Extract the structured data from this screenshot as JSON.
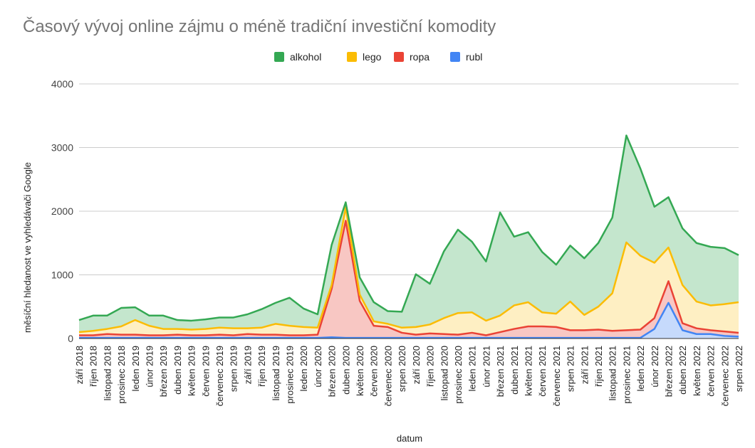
{
  "chart_data": {
    "type": "area",
    "stacked": true,
    "title": "Časový vývoj online zájmu o méně tradiční investiční komodity",
    "xlabel": "datum",
    "ylabel": "měsíční hledanost ve vyhledávači Google",
    "ylim": [
      0,
      4000
    ],
    "yticks": [
      0,
      1000,
      2000,
      3000,
      4000
    ],
    "grid": true,
    "legend_position": "top",
    "categories": [
      "září 2018",
      "říjen 2018",
      "listopad 2018",
      "prosinec 2018",
      "leden 2019",
      "únor 2019",
      "březen 2019",
      "duben 2019",
      "květen 2019",
      "červen 2019",
      "červenec 2019",
      "srpen 2019",
      "září 2019",
      "říjen 2019",
      "listopad 2019",
      "prosinec 2019",
      "leden 2020",
      "únor 2020",
      "březen 2020",
      "duben 2020",
      "květen 2020",
      "červen 2020",
      "červenec 2020",
      "srpen 2020",
      "září 2020",
      "říjen 2020",
      "listopad 2020",
      "prosinec 2020",
      "leden 2021",
      "únor 2021",
      "březen 2021",
      "duben 2021",
      "květen 2021",
      "červen 2021",
      "červenec 2021",
      "srpen 2021",
      "září 2021",
      "říjen 2021",
      "listopad 2021",
      "prosinec 2021",
      "leden 2022",
      "únor 2022",
      "březen 2022",
      "duben 2022",
      "květen 2022",
      "červen 2022",
      "červenec 2022",
      "srpen 2022"
    ],
    "series": [
      {
        "name": "rubl",
        "color": "#4285f4",
        "fill": "#c6dafc",
        "values": [
          10,
          10,
          10,
          10,
          10,
          10,
          10,
          10,
          10,
          10,
          10,
          10,
          10,
          10,
          10,
          10,
          10,
          10,
          20,
          10,
          10,
          10,
          10,
          10,
          10,
          10,
          10,
          10,
          10,
          10,
          10,
          10,
          10,
          10,
          10,
          10,
          10,
          10,
          10,
          10,
          10,
          150,
          560,
          130,
          70,
          70,
          40,
          30
        ]
      },
      {
        "name": "ropa",
        "color": "#ea4335",
        "fill": "#f8c7c3",
        "values": [
          40,
          40,
          60,
          50,
          50,
          40,
          40,
          50,
          40,
          40,
          50,
          40,
          60,
          50,
          50,
          40,
          40,
          50,
          760,
          1840,
          580,
          190,
          170,
          80,
          50,
          70,
          60,
          50,
          80,
          40,
          90,
          140,
          180,
          180,
          170,
          120,
          120,
          130,
          110,
          120,
          130,
          170,
          340,
          110,
          90,
          60,
          70,
          60
        ]
      },
      {
        "name": "lego",
        "color": "#fbbc04",
        "fill": "#feefc3",
        "values": [
          50,
          70,
          80,
          130,
          230,
          150,
          100,
          90,
          90,
          100,
          110,
          110,
          90,
          110,
          170,
          150,
          130,
          110,
          60,
          210,
          100,
          70,
          50,
          80,
          120,
          140,
          250,
          340,
          320,
          230,
          260,
          370,
          380,
          220,
          210,
          450,
          240,
          360,
          590,
          1380,
          1160,
          870,
          530,
          600,
          420,
          390,
          430,
          480
        ]
      },
      {
        "name": "alkohol",
        "color": "#34a853",
        "fill": "#c4e6cd",
        "values": [
          190,
          240,
          210,
          290,
          200,
          160,
          210,
          140,
          140,
          150,
          160,
          170,
          220,
          290,
          330,
          440,
          290,
          210,
          630,
          80,
          270,
          300,
          200,
          250,
          830,
          640,
          1050,
          1310,
          1110,
          930,
          1620,
          1080,
          1100,
          950,
          770,
          880,
          890,
          1000,
          1190,
          1680,
          1370,
          880,
          790,
          890,
          920,
          920,
          880,
          740
        ]
      }
    ]
  }
}
